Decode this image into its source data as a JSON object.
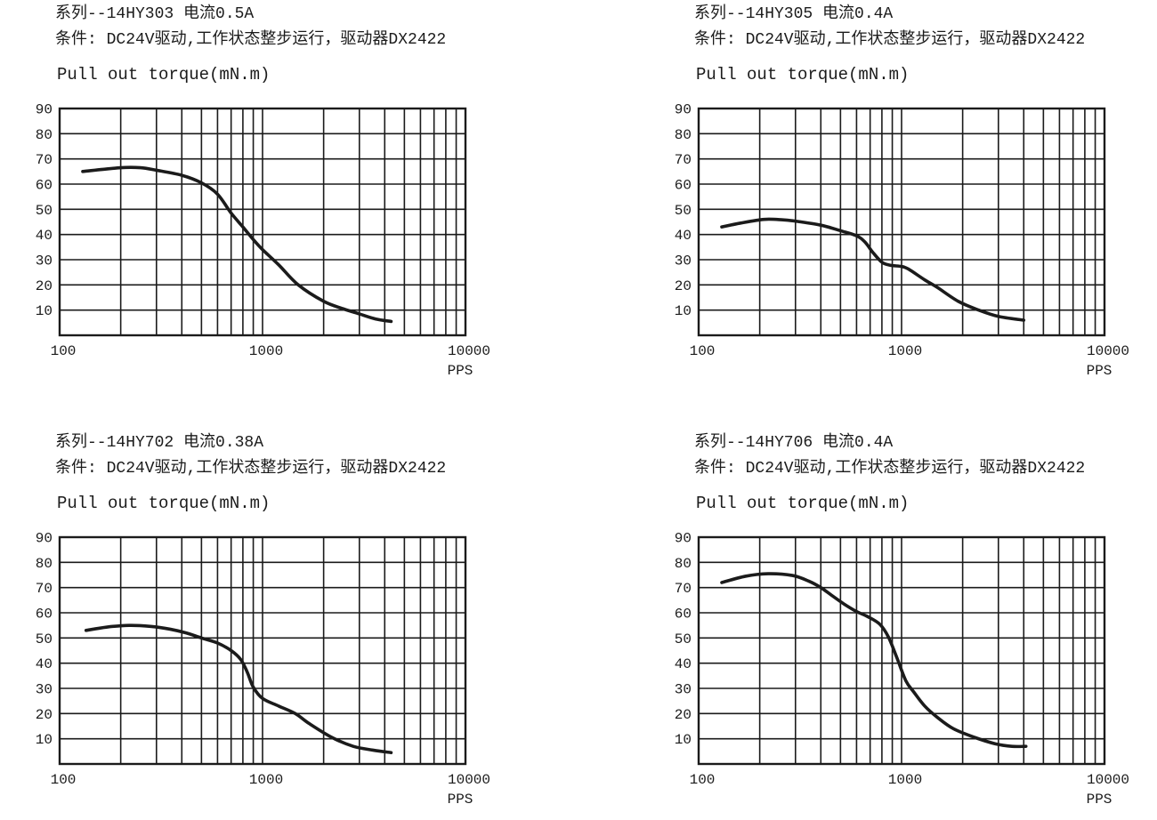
{
  "page": {
    "background": "#ffffff",
    "ink": "#1b1b1b"
  },
  "x_unit": "PPS",
  "chart_data": [
    {
      "type": "line",
      "title": "系列--14HY303 电流0.5A",
      "condition": "条件: DC24V驱动,工作状态整步运行，驱动器DX2422",
      "ylabel": "Pull out torque(mN.m)",
      "xlabel": "PPS",
      "x_scale": "log",
      "xlim": [
        100,
        10000
      ],
      "ylim": [
        0,
        90
      ],
      "x_ticks": [
        100,
        1000,
        10000
      ],
      "y_ticks": [
        10,
        20,
        30,
        40,
        50,
        60,
        70,
        80,
        90
      ],
      "grid": true,
      "legend": "none",
      "series": [
        {
          "name": "pull-out-torque",
          "points": [
            [
              130,
              65
            ],
            [
              200,
              66.5
            ],
            [
              250,
              66.5
            ],
            [
              300,
              65.5
            ],
            [
              400,
              63.5
            ],
            [
              500,
              60.5
            ],
            [
              600,
              56
            ],
            [
              700,
              48.5
            ],
            [
              800,
              43
            ],
            [
              900,
              38
            ],
            [
              1000,
              34
            ],
            [
              1200,
              28
            ],
            [
              1500,
              20
            ],
            [
              2000,
              13.5
            ],
            [
              2500,
              10.5
            ],
            [
              3000,
              8.5
            ],
            [
              3600,
              6.5
            ],
            [
              4300,
              5.5
            ]
          ]
        }
      ]
    },
    {
      "type": "line",
      "title": "系列--14HY305 电流0.4A",
      "condition": "条件: DC24V驱动,工作状态整步运行，驱动器DX2422",
      "ylabel": "Pull out torque(mN.m)",
      "xlabel": "PPS",
      "x_scale": "log",
      "xlim": [
        100,
        10000
      ],
      "ylim": [
        0,
        90
      ],
      "x_ticks": [
        100,
        1000,
        10000
      ],
      "y_ticks": [
        10,
        20,
        30,
        40,
        50,
        60,
        70,
        80,
        90
      ],
      "grid": true,
      "legend": "none",
      "series": [
        {
          "name": "pull-out-torque",
          "points": [
            [
              130,
              43
            ],
            [
              160,
              44.5
            ],
            [
              210,
              46
            ],
            [
              260,
              45.8
            ],
            [
              300,
              45.3
            ],
            [
              400,
              43.7
            ],
            [
              500,
              41.5
            ],
            [
              600,
              39.5
            ],
            [
              660,
              37
            ],
            [
              720,
              33
            ],
            [
              800,
              29
            ],
            [
              880,
              27.8
            ],
            [
              1000,
              27.3
            ],
            [
              1080,
              26.3
            ],
            [
              1300,
              22
            ],
            [
              1500,
              19
            ],
            [
              1900,
              13.5
            ],
            [
              2400,
              10
            ],
            [
              3000,
              7.5
            ],
            [
              4000,
              6
            ]
          ]
        }
      ]
    },
    {
      "type": "line",
      "title": "系列--14HY702 电流0.38A",
      "condition": "条件: DC24V驱动,工作状态整步运行，驱动器DX2422",
      "ylabel": "Pull out torque(mN.m)",
      "xlabel": "PPS",
      "x_scale": "log",
      "xlim": [
        100,
        10000
      ],
      "ylim": [
        0,
        90
      ],
      "x_ticks": [
        100,
        1000,
        10000
      ],
      "y_ticks": [
        10,
        20,
        30,
        40,
        50,
        60,
        70,
        80,
        90
      ],
      "grid": true,
      "legend": "none",
      "series": [
        {
          "name": "pull-out-torque",
          "points": [
            [
              135,
              53
            ],
            [
              170,
              54.3
            ],
            [
              220,
              55
            ],
            [
              280,
              54.6
            ],
            [
              350,
              53.5
            ],
            [
              420,
              52
            ],
            [
              500,
              50
            ],
            [
              600,
              48
            ],
            [
              700,
              45
            ],
            [
              780,
              41.5
            ],
            [
              840,
              36.5
            ],
            [
              900,
              30.5
            ],
            [
              1000,
              26
            ],
            [
              1200,
              23
            ],
            [
              1450,
              20
            ],
            [
              1700,
              16
            ],
            [
              2200,
              10.5
            ],
            [
              2800,
              7
            ],
            [
              3500,
              5.5
            ],
            [
              4300,
              4.5
            ]
          ]
        }
      ]
    },
    {
      "type": "line",
      "title": "系列--14HY706 电流0.4A",
      "condition": "条件: DC24V驱动,工作状态整步运行，驱动器DX2422",
      "ylabel": "Pull out torque(mN.m)",
      "xlabel": "PPS",
      "x_scale": "log",
      "xlim": [
        100,
        10000
      ],
      "ylim": [
        0,
        90
      ],
      "x_ticks": [
        100,
        1000,
        10000
      ],
      "y_ticks": [
        10,
        20,
        30,
        40,
        50,
        60,
        70,
        80,
        90
      ],
      "grid": true,
      "legend": "none",
      "series": [
        {
          "name": "pull-out-torque",
          "points": [
            [
              130,
              72
            ],
            [
              170,
              74.5
            ],
            [
              220,
              75.5
            ],
            [
              290,
              74.8
            ],
            [
              350,
              72.5
            ],
            [
              400,
              70
            ],
            [
              460,
              66.5
            ],
            [
              520,
              63.5
            ],
            [
              600,
              60.5
            ],
            [
              680,
              58.5
            ],
            [
              780,
              55.5
            ],
            [
              860,
              50.5
            ],
            [
              950,
              42
            ],
            [
              1050,
              33
            ],
            [
              1150,
              28.5
            ],
            [
              1300,
              23
            ],
            [
              1500,
              18.5
            ],
            [
              1800,
              14
            ],
            [
              2300,
              10.5
            ],
            [
              2900,
              8
            ],
            [
              3500,
              7
            ],
            [
              4100,
              7
            ]
          ]
        }
      ]
    }
  ]
}
